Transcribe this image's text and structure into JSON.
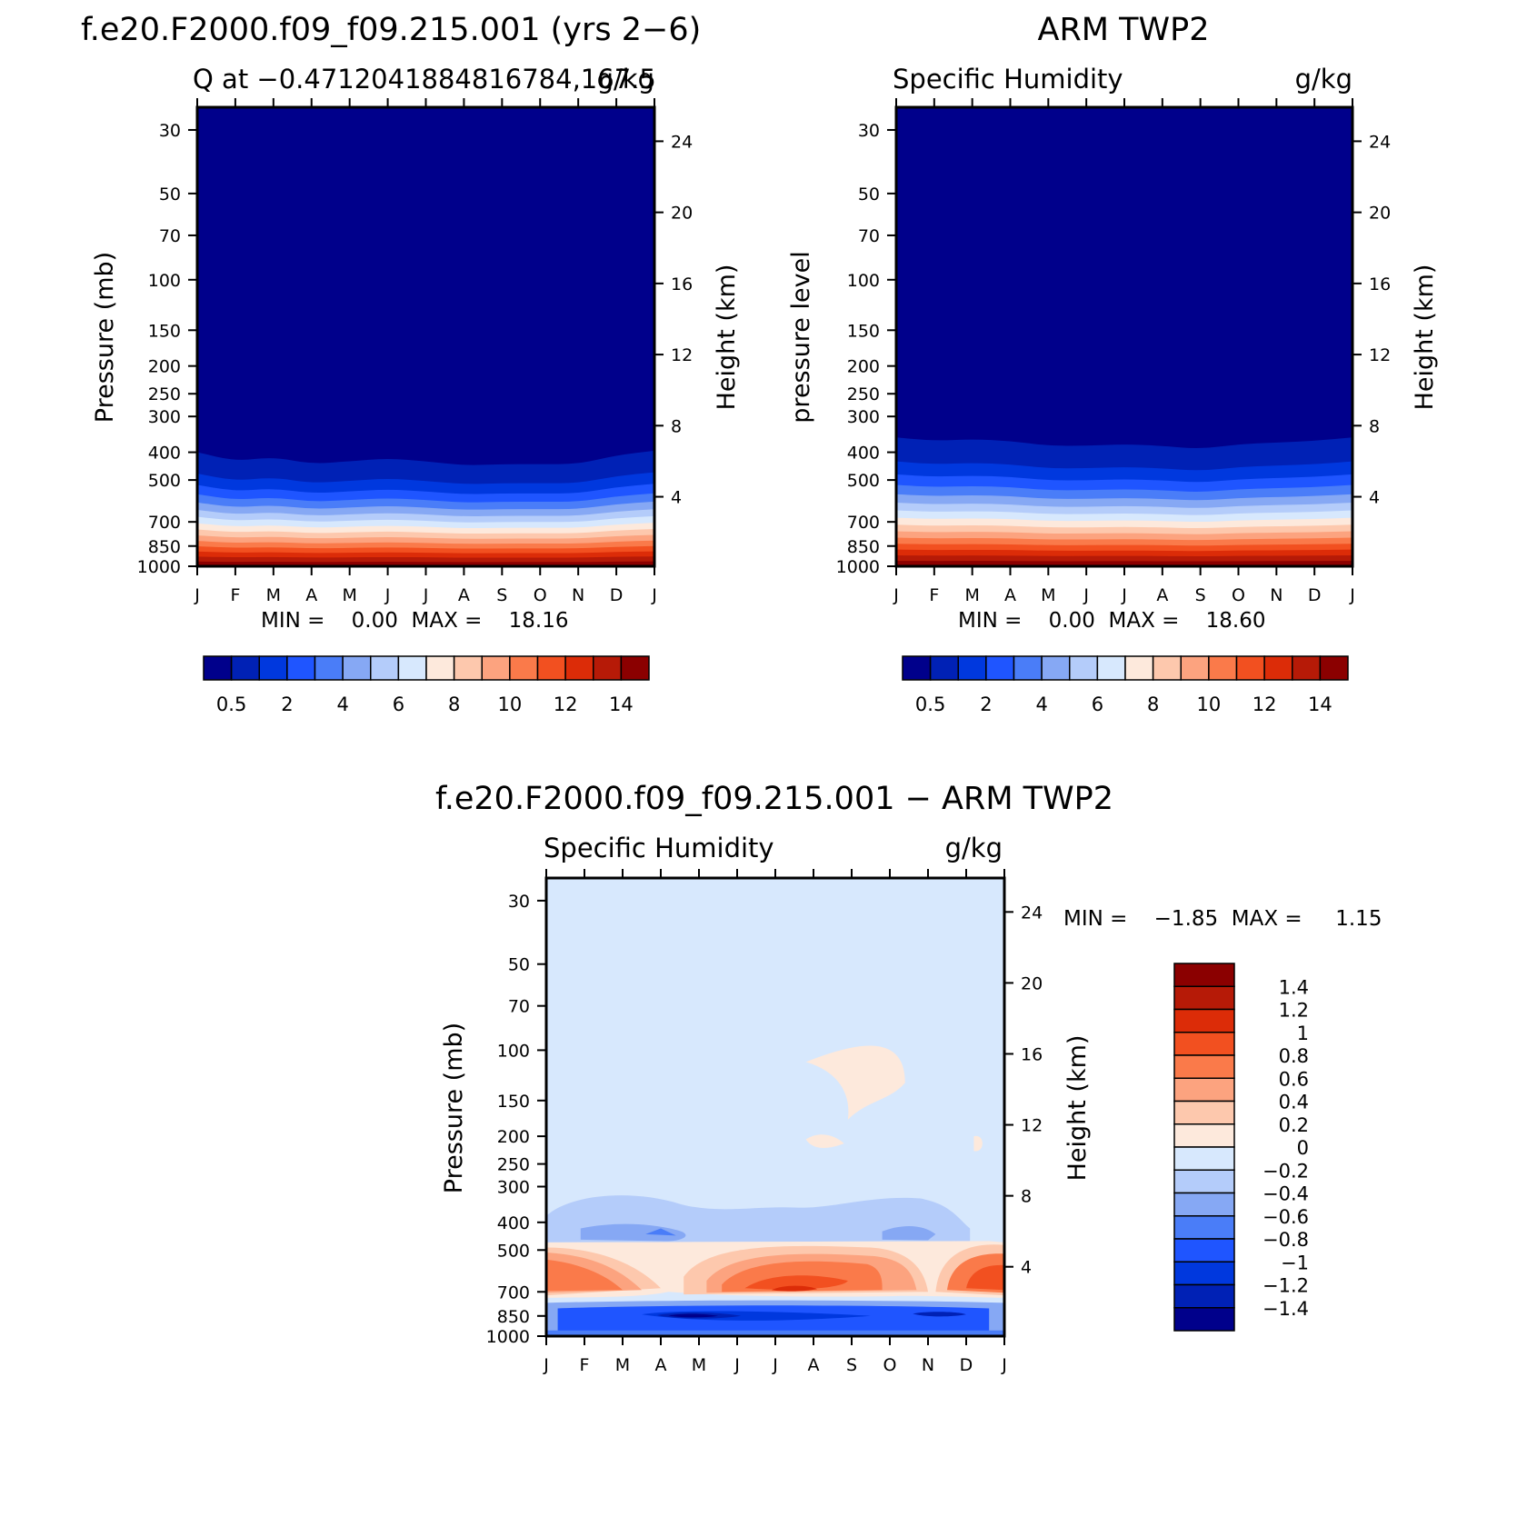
{
  "chart_data": [
    {
      "type": "heatmap",
      "panel": "top-left",
      "title": "f.e20.F2000.f09_f09.215.001 (yrs 2-6)",
      "subtitle_left": "Q at -0.4712041884816784,167.5",
      "subtitle_right": "g/kg",
      "ylabel_left": "Pressure (mb)",
      "ylabel_right": "Height (km)",
      "months": [
        "J",
        "F",
        "M",
        "A",
        "M",
        "J",
        "J",
        "A",
        "S",
        "O",
        "N",
        "D",
        "J"
      ],
      "pressure_ticks": [
        "30",
        "50",
        "70",
        "100",
        "150",
        "200",
        "250",
        "300",
        "400",
        "500",
        "700",
        "850",
        "1000"
      ],
      "height_ticks": [
        "24",
        "20",
        "16",
        "12",
        "8",
        "4"
      ],
      "minmax": "MIN =    0.00  MAX =    18.16",
      "colorbar_labels": [
        "0.5",
        "2",
        "4",
        "6",
        "8",
        "10",
        "12",
        "14"
      ],
      "moisture_top_mb": [
        400,
        430,
        415,
        440,
        430,
        420,
        430,
        445,
        440,
        440,
        440,
        410,
        395
      ],
      "moisture_top_unit": "mb",
      "value_range_g_kg": [
        0.0,
        18.16
      ]
    },
    {
      "type": "heatmap",
      "panel": "top-right",
      "title": "ARM TWP2",
      "subtitle_left": "Specific Humidity",
      "subtitle_right": "g/kg",
      "ylabel_left": "pressure level",
      "ylabel_right": "Height (km)",
      "months": [
        "J",
        "F",
        "M",
        "A",
        "M",
        "J",
        "J",
        "A",
        "S",
        "O",
        "N",
        "D",
        "J"
      ],
      "pressure_ticks": [
        "30",
        "50",
        "70",
        "100",
        "150",
        "200",
        "250",
        "300",
        "400",
        "500",
        "700",
        "850",
        "1000"
      ],
      "height_ticks": [
        "24",
        "20",
        "16",
        "12",
        "8",
        "4"
      ],
      "minmax": "MIN =    0.00  MAX =    18.60",
      "colorbar_labels": [
        "0.5",
        "2",
        "4",
        "6",
        "8",
        "10",
        "12",
        "14"
      ],
      "moisture_top_mb": [
        355,
        365,
        360,
        365,
        380,
        380,
        375,
        380,
        390,
        375,
        370,
        365,
        355
      ],
      "moisture_top_unit": "mb",
      "value_range_g_kg": [
        0.0,
        18.6
      ]
    },
    {
      "type": "heatmap",
      "panel": "bottom",
      "title": "f.e20.F2000.f09_f09.215.001 - ARM TWP2",
      "subtitle_left": "Specific Humidity",
      "subtitle_right": "g/kg",
      "ylabel_left": "Pressure (mb)",
      "ylabel_right": "Height (km)",
      "months": [
        "J",
        "F",
        "M",
        "A",
        "M",
        "J",
        "J",
        "A",
        "S",
        "O",
        "N",
        "D",
        "J"
      ],
      "pressure_ticks": [
        "30",
        "50",
        "70",
        "100",
        "150",
        "200",
        "250",
        "300",
        "400",
        "500",
        "700",
        "850",
        "1000"
      ],
      "height_ticks": [
        "24",
        "20",
        "16",
        "12",
        "8",
        "4"
      ],
      "minmax": "MIN =    -1.85  MAX =     1.15",
      "colorbar_labels": [
        "1.4",
        "1.2",
        "1",
        "0.8",
        "0.6",
        "0.4",
        "0.2",
        "0",
        "-0.2",
        "-0.4",
        "-0.6",
        "-0.8",
        "-1",
        "-1.2",
        "-1.4"
      ],
      "value_range_g_kg": [
        -1.85,
        1.15
      ]
    }
  ],
  "colors": {
    "moist_palette": [
      "#00008b",
      "#0021b5",
      "#0038de",
      "#1f55ff",
      "#4a7df8",
      "#86a8f4",
      "#b4ccfa",
      "#d7e8fd",
      "#fde9dc",
      "#fdc8ad",
      "#fca37f",
      "#fa7a4a",
      "#f25020",
      "#dc2c08",
      "#b61a07",
      "#8b0000"
    ],
    "diff_palette": [
      "#8b0000",
      "#b61a07",
      "#dc2c08",
      "#f25020",
      "#fa7a4a",
      "#fca37f",
      "#fdc8ad",
      "#fde9dc",
      "#d7e8fd",
      "#b4ccfa",
      "#86a8f4",
      "#4a7df8",
      "#1f55ff",
      "#0038de",
      "#0021b5",
      "#00008b"
    ]
  }
}
